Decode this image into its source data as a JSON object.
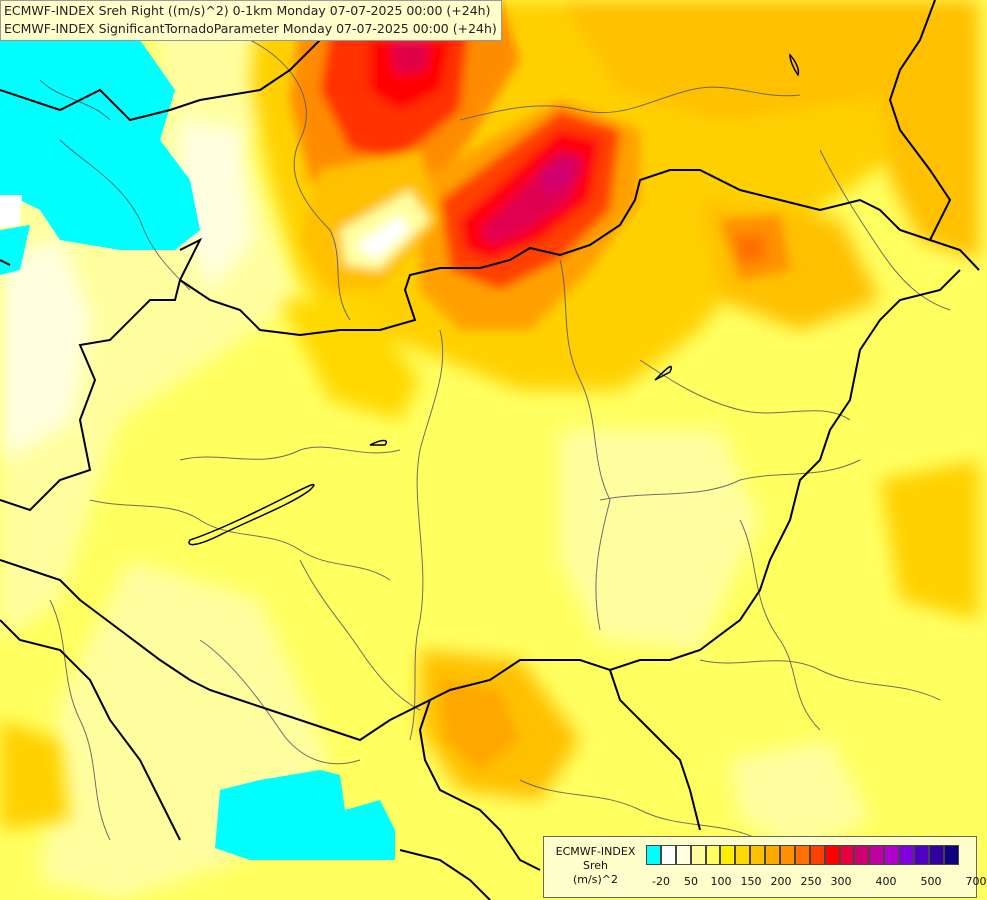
{
  "titles": [
    "ECMWF-INDEX Sreh Right ((m/s)^2) 0-1km Monday 07-07-2025 00:00 (+24h)",
    "ECMWF-INDEX SignificantTornadoParameter Monday 07-07-2025 00:00 (+24h)"
  ],
  "legend": {
    "line1": "ECMWF-INDEX",
    "line2": "Sreh",
    "line3": "(m/s)^2",
    "colors": [
      "#00ffff",
      "#ffffff",
      "#ffffe0",
      "#ffffa0",
      "#ffff60",
      "#ffee00",
      "#ffd800",
      "#ffc000",
      "#ffa800",
      "#ff9000",
      "#ff7000",
      "#ff4000",
      "#ff0000",
      "#e80040",
      "#d00070",
      "#c000a0",
      "#b000d0",
      "#8000e0",
      "#5000c0",
      "#3000a0",
      "#100080"
    ],
    "tick_labels": [
      "-20",
      "50",
      "100",
      "150",
      "200",
      "250",
      "300",
      "400",
      "500",
      "700"
    ]
  }
}
